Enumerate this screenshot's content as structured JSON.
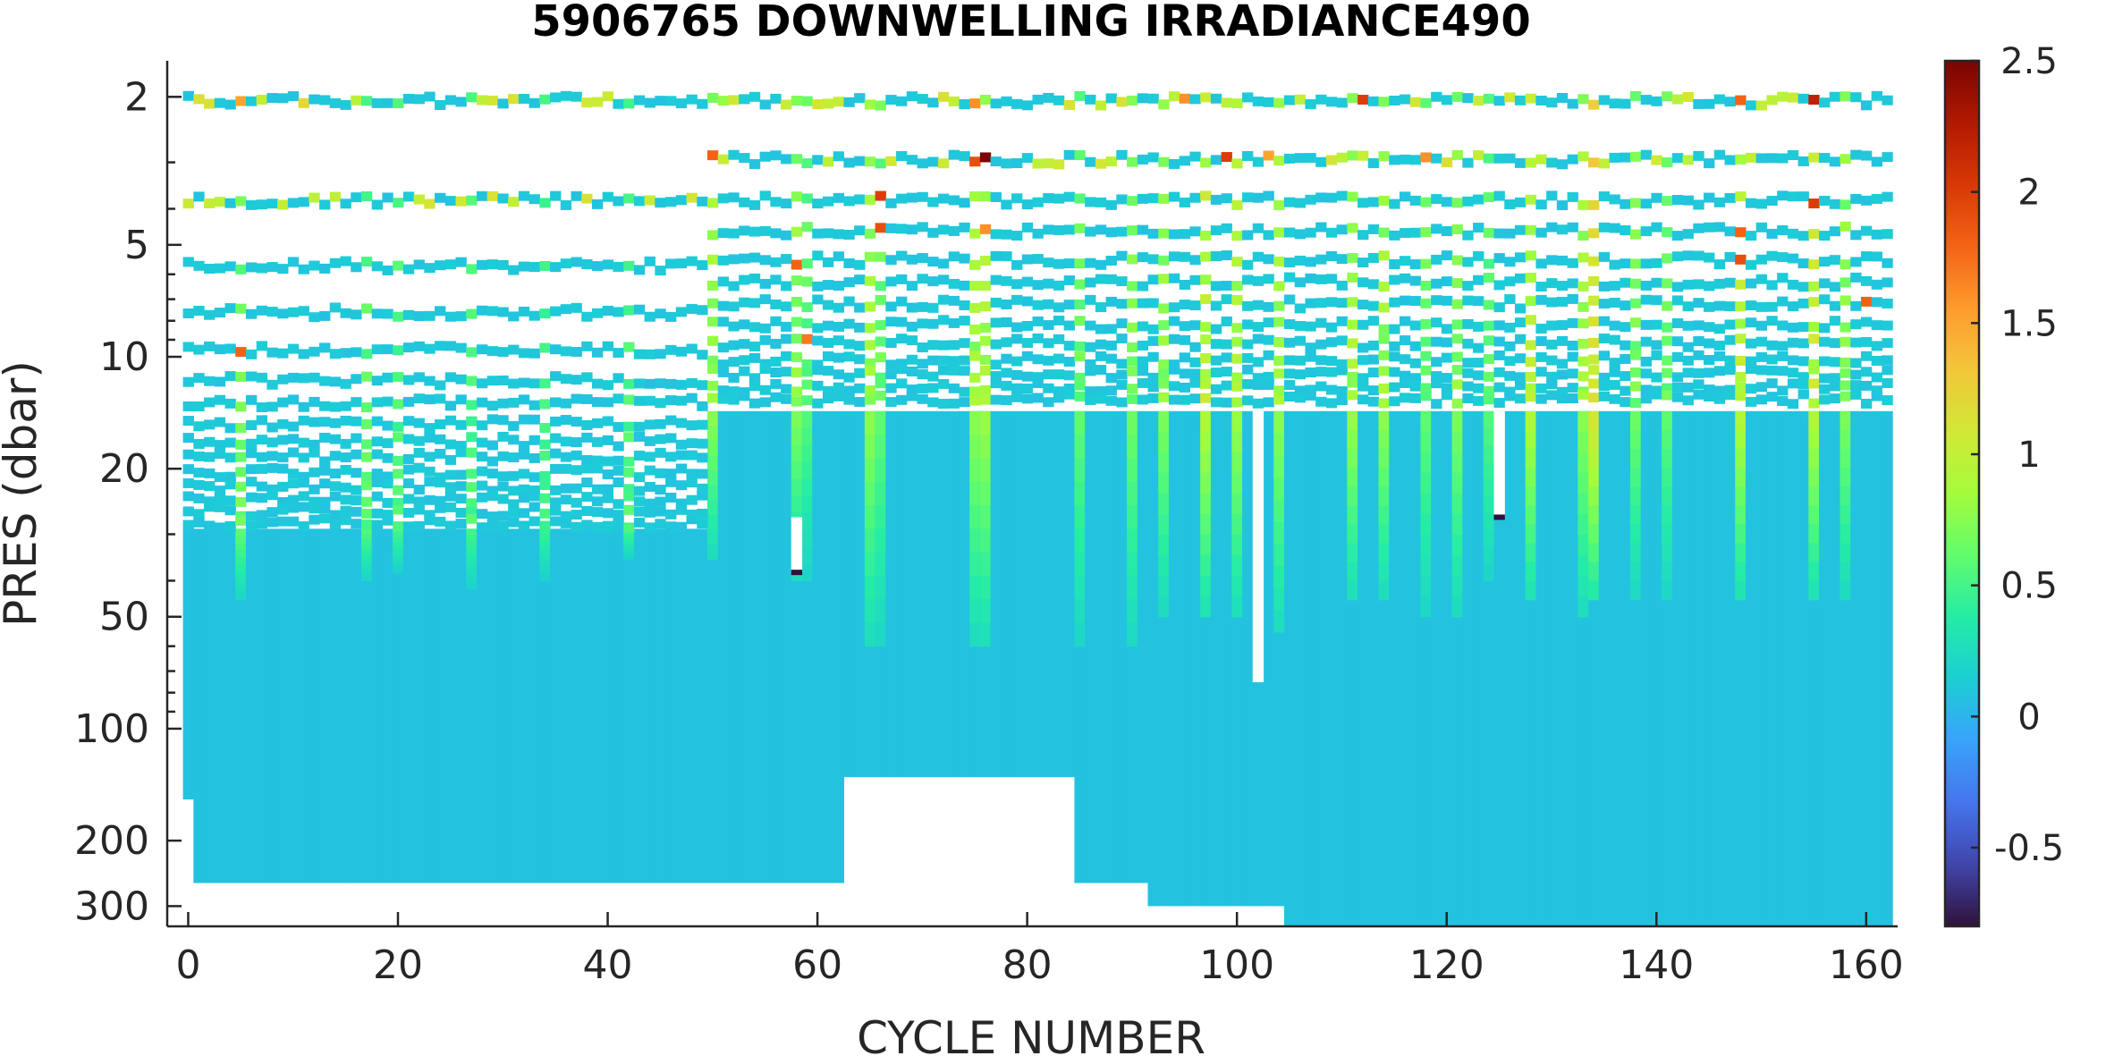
{
  "chart_data": {
    "type": "heatmap",
    "title": "5906765  DOWNWELLING IRRADIANCE490",
    "xlabel": "CYCLE NUMBER",
    "ylabel": "PRES (dbar)",
    "x_scale": "linear",
    "y_scale": "log",
    "y_reversed": true,
    "xlim": [
      -2,
      163
    ],
    "ylim": [
      1.6,
      340
    ],
    "x_ticks": [
      0,
      20,
      40,
      60,
      80,
      100,
      120,
      140,
      160
    ],
    "x_tick_labels": [
      "0",
      "20",
      "40",
      "60",
      "80",
      "100",
      "120",
      "140",
      "160"
    ],
    "y_ticks": [
      2,
      5,
      10,
      20,
      50,
      100,
      200,
      300
    ],
    "y_tick_labels": [
      "2",
      "5",
      "10",
      "20",
      "50",
      "100",
      "200",
      "300"
    ],
    "colorbar": {
      "colormap": "turbo",
      "range": [
        -0.8,
        2.5
      ],
      "ticks": [
        -0.5,
        0,
        0.5,
        1,
        1.5,
        2,
        2.5
      ],
      "tick_labels": [
        "-0.5",
        "0",
        "0.5",
        "1",
        "1.5",
        "2",
        "2.5"
      ],
      "colors": [
        "#30123b",
        "#4145ab",
        "#4675ed",
        "#39a2fc",
        "#1bcfd4",
        "#24eca6",
        "#61fc6c",
        "#a4fc3b",
        "#d1e834",
        "#f3c63a",
        "#fe9b2d",
        "#f36315",
        "#d93806",
        "#b11901",
        "#7a0403"
      ]
    },
    "background_value": 0.08,
    "cycles": {
      "first": 0,
      "last": 162
    },
    "surface_levels_dbar": {
      "cycles_0_49": [
        2.05,
        3.8,
        5.7,
        7.6,
        9.6,
        11.6,
        13.3,
        15.1,
        16.9,
        18.6,
        20.5,
        22.3,
        24.2,
        26.1,
        28.0
      ],
      "cycles_50_162": [
        2.05,
        2.95,
        3.8,
        4.6,
        5.5,
        6.3,
        7.2,
        8.2,
        9.2,
        10.2,
        11.1,
        12.1,
        13.0
      ]
    },
    "continuous_start_dbar": {
      "cycles_0_49": 29,
      "cycles_50_162": 14
    },
    "profile_bottom_dbar": [
      {
        "from_cycle": 0,
        "to_cycle": 0,
        "bottom_dbar": 155
      },
      {
        "from_cycle": 1,
        "to_cycle": 62,
        "bottom_dbar": 260
      },
      {
        "from_cycle": 63,
        "to_cycle": 84,
        "bottom_dbar": 135
      },
      {
        "from_cycle": 85,
        "to_cycle": 91,
        "bottom_dbar": 260
      },
      {
        "from_cycle": 92,
        "to_cycle": 104,
        "bottom_dbar": 300
      },
      {
        "from_cycle": 105,
        "to_cycle": 162,
        "bottom_dbar": 340
      }
    ],
    "bright_cycles": [
      {
        "cycle": 5,
        "value": 0.6,
        "max_depth_dbar": 45
      },
      {
        "cycle": 17,
        "value": 0.55,
        "max_depth_dbar": 40
      },
      {
        "cycle": 20,
        "value": 0.5,
        "max_depth_dbar": 38
      },
      {
        "cycle": 27,
        "value": 0.5,
        "max_depth_dbar": 42
      },
      {
        "cycle": 34,
        "value": 0.45,
        "max_depth_dbar": 40
      },
      {
        "cycle": 42,
        "value": 0.5,
        "max_depth_dbar": 35
      },
      {
        "cycle": 50,
        "value": 0.75,
        "max_depth_dbar": 35
      },
      {
        "cycle": 58,
        "value": 0.7,
        "max_depth_dbar": 40
      },
      {
        "cycle": 59,
        "value": 0.55,
        "max_depth_dbar": 40
      },
      {
        "cycle": 65,
        "value": 0.75,
        "max_depth_dbar": 60
      },
      {
        "cycle": 66,
        "value": 0.6,
        "max_depth_dbar": 60
      },
      {
        "cycle": 75,
        "value": 0.75,
        "max_depth_dbar": 60
      },
      {
        "cycle": 76,
        "value": 0.8,
        "max_depth_dbar": 60
      },
      {
        "cycle": 85,
        "value": 0.6,
        "max_depth_dbar": 60
      },
      {
        "cycle": 90,
        "value": 0.65,
        "max_depth_dbar": 60
      },
      {
        "cycle": 93,
        "value": 0.7,
        "max_depth_dbar": 50
      },
      {
        "cycle": 97,
        "value": 0.9,
        "max_depth_dbar": 50
      },
      {
        "cycle": 100,
        "value": 0.8,
        "max_depth_dbar": 50
      },
      {
        "cycle": 104,
        "value": 0.75,
        "max_depth_dbar": 55
      },
      {
        "cycle": 111,
        "value": 0.8,
        "max_depth_dbar": 45
      },
      {
        "cycle": 114,
        "value": 0.75,
        "max_depth_dbar": 45
      },
      {
        "cycle": 118,
        "value": 0.6,
        "max_depth_dbar": 50
      },
      {
        "cycle": 121,
        "value": 0.7,
        "max_depth_dbar": 50
      },
      {
        "cycle": 124,
        "value": 0.55,
        "max_depth_dbar": 40
      },
      {
        "cycle": 128,
        "value": 0.9,
        "max_depth_dbar": 45
      },
      {
        "cycle": 133,
        "value": 0.75,
        "max_depth_dbar": 50
      },
      {
        "cycle": 134,
        "value": 1.1,
        "max_depth_dbar": 45
      },
      {
        "cycle": 138,
        "value": 0.65,
        "max_depth_dbar": 45
      },
      {
        "cycle": 141,
        "value": 0.6,
        "max_depth_dbar": 45
      },
      {
        "cycle": 148,
        "value": 0.9,
        "max_depth_dbar": 45
      },
      {
        "cycle": 155,
        "value": 0.9,
        "max_depth_dbar": 45
      },
      {
        "cycle": 158,
        "value": 0.7,
        "max_depth_dbar": 45
      }
    ],
    "surface_hot_points": [
      {
        "cycle": 5,
        "pres": 2.05,
        "value": 1.5
      },
      {
        "cycle": 11,
        "pres": 2.05,
        "value": 1.2
      },
      {
        "cycle": 29,
        "pres": 2.05,
        "value": 1.1
      },
      {
        "cycle": 51,
        "pres": 2.05,
        "value": 0.8
      },
      {
        "cycle": 60,
        "pres": 2.05,
        "value": 1.1
      },
      {
        "cycle": 75,
        "pres": 2.05,
        "value": 1.6
      },
      {
        "cycle": 95,
        "pres": 2.05,
        "value": 1.6
      },
      {
        "cycle": 112,
        "pres": 2.05,
        "value": 2.0
      },
      {
        "cycle": 148,
        "pres": 2.05,
        "value": 1.8
      },
      {
        "cycle": 155,
        "pres": 2.05,
        "value": 2.2
      },
      {
        "cycle": 50,
        "pres": 2.95,
        "value": 1.8
      },
      {
        "cycle": 76,
        "pres": 2.95,
        "value": 2.5
      },
      {
        "cycle": 75,
        "pres": 2.95,
        "value": 1.9
      },
      {
        "cycle": 99,
        "pres": 2.95,
        "value": 2.0
      },
      {
        "cycle": 103,
        "pres": 2.95,
        "value": 1.5
      },
      {
        "cycle": 118,
        "pres": 2.95,
        "value": 1.6
      },
      {
        "cycle": 66,
        "pres": 3.8,
        "value": 2.0
      },
      {
        "cycle": 155,
        "pres": 3.8,
        "value": 2.0
      },
      {
        "cycle": 66,
        "pres": 4.6,
        "value": 1.9
      },
      {
        "cycle": 76,
        "pres": 4.6,
        "value": 1.6
      },
      {
        "cycle": 148,
        "pres": 4.6,
        "value": 1.8
      },
      {
        "cycle": 58,
        "pres": 5.5,
        "value": 1.8
      },
      {
        "cycle": 148,
        "pres": 5.5,
        "value": 1.9
      },
      {
        "cycle": 5,
        "pres": 9.6,
        "value": 1.8
      },
      {
        "cycle": 59,
        "pres": 9.2,
        "value": 1.7
      },
      {
        "cycle": 160,
        "pres": 7.2,
        "value": 1.8
      }
    ],
    "gaps": [
      {
        "cycle": 58,
        "from_dbar": 27,
        "to_dbar": 38
      },
      {
        "cycle": 102,
        "from_dbar": 14,
        "to_dbar": 75
      },
      {
        "cycle": 125,
        "from_dbar": 14,
        "to_dbar": 27
      }
    ],
    "low_points": [
      {
        "cycle": 58,
        "pres": 38,
        "value": -0.8
      },
      {
        "cycle": 125,
        "pres": 27,
        "value": -0.8
      }
    ]
  }
}
